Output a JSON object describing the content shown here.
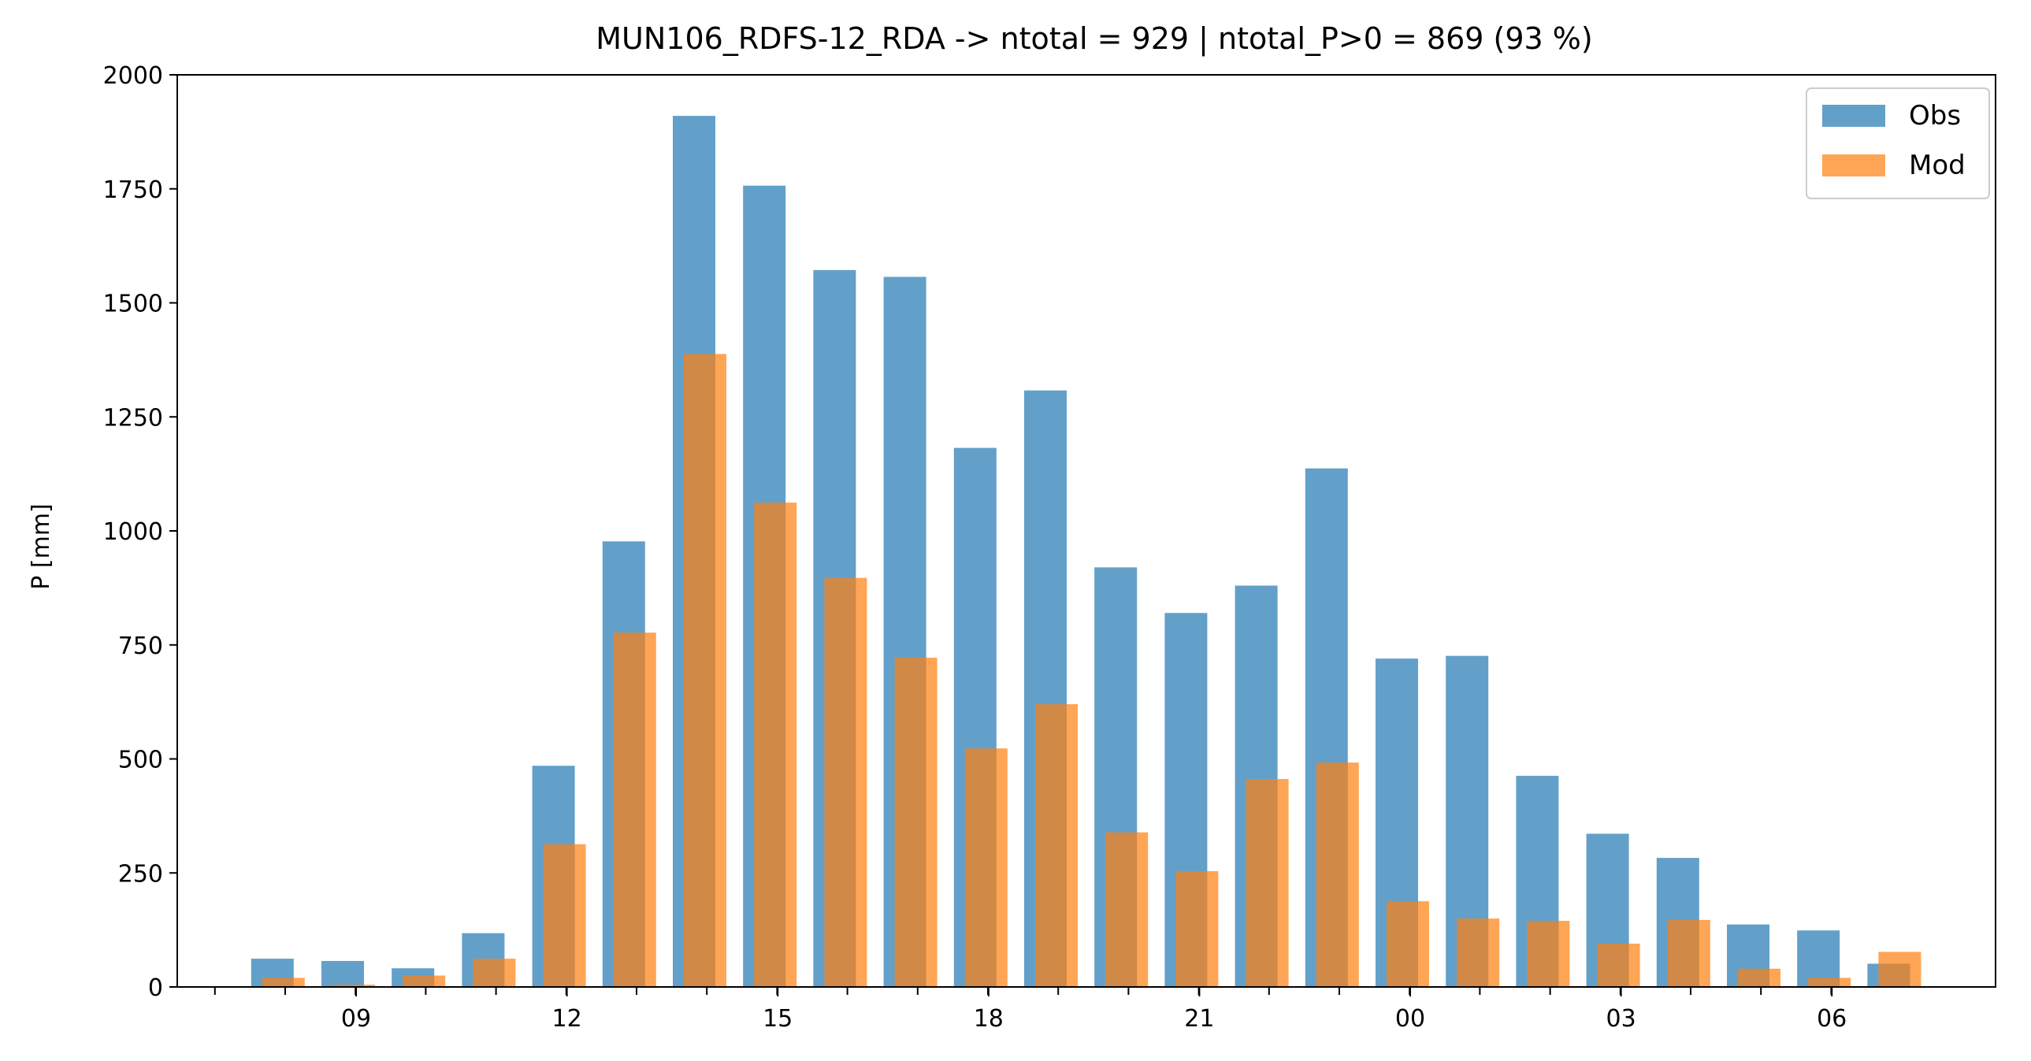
{
  "colors": {
    "obs": "#1f77b4",
    "mod": "#ff7f0e",
    "axis": "#000000",
    "background": "#ffffff"
  },
  "chart_data": {
    "type": "bar",
    "title": "MUN106_RDFS-12_RDA -> ntotal = 929 | ntotal_P>0 = 869 (93 %)",
    "xlabel": "",
    "ylabel": "P [mm]",
    "ylim": [
      0,
      2000
    ],
    "yticks": [
      0,
      250,
      500,
      750,
      1000,
      1250,
      1500,
      1750,
      2000
    ],
    "xticklabels": [
      "09",
      "12",
      "15",
      "18",
      "21",
      "00",
      "03",
      "06"
    ],
    "xticklabel_hours": [
      9,
      12,
      15,
      18,
      21,
      24,
      27,
      30
    ],
    "hours": [
      8,
      9,
      10,
      11,
      12,
      13,
      14,
      15,
      16,
      17,
      18,
      19,
      20,
      21,
      22,
      23,
      24,
      25,
      26,
      27,
      28,
      29,
      30,
      31
    ],
    "grid": false,
    "legend_position": "top-right",
    "series": [
      {
        "name": "Obs",
        "values": [
          62,
          57,
          41,
          118,
          485,
          977,
          1910,
          1757,
          1572,
          1557,
          1182,
          1308,
          920,
          820,
          880,
          1137,
          720,
          726,
          463,
          336,
          283,
          137,
          124,
          51
        ]
      },
      {
        "name": "Mod",
        "values": [
          20,
          5,
          25,
          62,
          313,
          777,
          1388,
          1062,
          897,
          722,
          523,
          620,
          339,
          254,
          456,
          492,
          188,
          150,
          145,
          95,
          147,
          40,
          20,
          77
        ]
      }
    ]
  }
}
